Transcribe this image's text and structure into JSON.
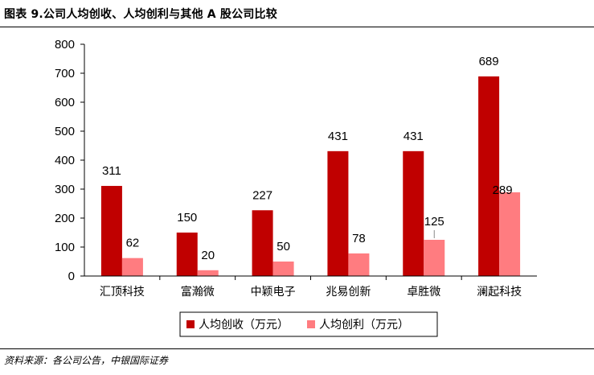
{
  "header": {
    "title": "图表 9.公司人均创收、人均创利与其他 A 股公司比较"
  },
  "footer": {
    "source": "资料来源：各公司公告，中银国际证券"
  },
  "colors": {
    "revenue": "#c00000",
    "profit": "#ff7c80"
  },
  "chart_data": {
    "type": "bar",
    "categories": [
      "汇顶科技",
      "富瀚微",
      "中颖电子",
      "兆易创新",
      "卓胜微",
      "澜起科技"
    ],
    "series": [
      {
        "name": "人均创收（万元）",
        "values": [
          311,
          150,
          227,
          431,
          431,
          689
        ]
      },
      {
        "name": "人均创利（万元）",
        "values": [
          62,
          20,
          50,
          78,
          125,
          289
        ]
      }
    ],
    "ylim": [
      0,
      800
    ],
    "yticks": [
      0,
      100,
      200,
      300,
      400,
      500,
      600,
      700,
      800
    ],
    "grid": false,
    "legend": "bottom"
  }
}
